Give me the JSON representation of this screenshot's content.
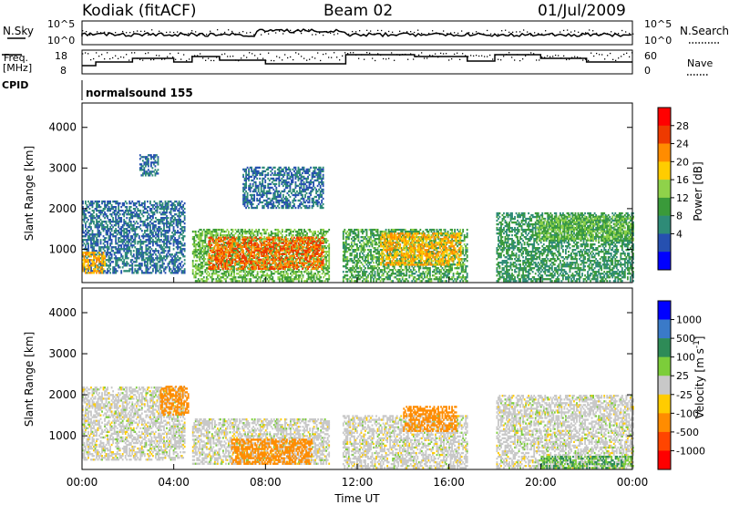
{
  "header": {
    "radar": "Kodiak (fitACF)",
    "beam": "Beam 02",
    "date": "01/Jul/2009"
  },
  "noise_panel": {
    "left_label": "N.Sky",
    "left_ticks": [
      "10^5",
      "10^0"
    ],
    "right_ticks": [
      "10^5",
      "10^0"
    ],
    "right_label": "N.Search"
  },
  "freq_panel": {
    "left_label_line1": "Freq.",
    "left_label_line2": "[MHz]",
    "left_ticks": [
      "18",
      "8"
    ],
    "right_ticks": [
      "60",
      "0"
    ],
    "right_label": "Nave"
  },
  "cpid_panel": {
    "label": "CPID",
    "program": "normalsound 155"
  },
  "x_axis": {
    "label": "Time UT",
    "ticks": [
      "00:00",
      "04:00",
      "08:00",
      "12:00",
      "16:00",
      "20:00",
      "00:00"
    ]
  },
  "chart_data": [
    {
      "type": "heatmap",
      "title": "",
      "xlabel": "Time UT",
      "ylabel": "Slant Range [km]",
      "xlim_hours": [
        0,
        24
      ],
      "ylim": [
        180,
        4600
      ],
      "yticks": [
        "1000",
        "2000",
        "3000",
        "4000"
      ],
      "colorbar": {
        "label": "Power [dB]",
        "ticks": [
          "28",
          "24",
          "20",
          "16",
          "12",
          "8",
          "4"
        ],
        "colors": [
          "#ff0000",
          "#ee3a00",
          "#ff8c00",
          "#ffcc00",
          "#8fd24a",
          "#3a9a3a",
          "#2e8b77",
          "#2650b0",
          "#0000ff"
        ]
      },
      "data_gaps_hours": [
        [
          10.9,
          11.3
        ],
        [
          16.8,
          17.4
        ],
        [
          17.6,
          18.0
        ]
      ],
      "echo_regions": [
        {
          "t_start": 0.0,
          "t_end": 4.5,
          "range_min": 400,
          "range_max": 2200,
          "level_db": 6
        },
        {
          "t_start": 0.0,
          "t_end": 1.0,
          "range_min": 400,
          "range_max": 900,
          "level_db": 22
        },
        {
          "t_start": 2.5,
          "t_end": 3.3,
          "range_min": 2800,
          "range_max": 3300,
          "level_db": 6
        },
        {
          "t_start": 4.8,
          "t_end": 10.8,
          "range_min": 200,
          "range_max": 1500,
          "level_db": 14
        },
        {
          "t_start": 5.5,
          "t_end": 10.5,
          "range_min": 500,
          "range_max": 1300,
          "level_db": 26
        },
        {
          "t_start": 7.0,
          "t_end": 10.5,
          "range_min": 2000,
          "range_max": 3000,
          "level_db": 6
        },
        {
          "t_start": 11.3,
          "t_end": 16.8,
          "range_min": 200,
          "range_max": 1500,
          "level_db": 12
        },
        {
          "t_start": 13.0,
          "t_end": 16.5,
          "range_min": 600,
          "range_max": 1400,
          "level_db": 22
        },
        {
          "t_start": 18.0,
          "t_end": 24.0,
          "range_min": 200,
          "range_max": 1900,
          "level_db": 10
        },
        {
          "t_start": 19.8,
          "t_end": 24.0,
          "range_min": 1200,
          "range_max": 1800,
          "level_db": 14
        }
      ]
    },
    {
      "type": "heatmap",
      "title": "",
      "xlabel": "Time UT",
      "ylabel": "Slant Range [km]",
      "xlim_hours": [
        0,
        24
      ],
      "ylim": [
        180,
        4600
      ],
      "yticks": [
        "1000",
        "2000",
        "3000",
        "4000"
      ],
      "colorbar": {
        "label": "Velocity [m s^-1]",
        "ticks": [
          "1000",
          "500",
          "100",
          "25",
          "-25",
          "-100",
          "-500",
          "-1000"
        ],
        "colors": [
          "#0000ff",
          "#3a7ac8",
          "#2e8b57",
          "#7ccd3a",
          "#c8c8c8",
          "#ffcc00",
          "#ff8c00",
          "#ff4500",
          "#ff0000"
        ]
      },
      "data_gaps_hours": [
        [
          10.9,
          11.3
        ],
        [
          16.8,
          17.4
        ],
        [
          17.6,
          18.0
        ]
      ],
      "echo_regions": [
        {
          "t_start": 0.0,
          "t_end": 4.5,
          "range_min": 400,
          "range_max": 2200,
          "velocity": 0
        },
        {
          "t_start": 3.4,
          "t_end": 4.6,
          "range_min": 1500,
          "range_max": 2200,
          "velocity": -200
        },
        {
          "t_start": 4.8,
          "t_end": 10.8,
          "range_min": 300,
          "range_max": 1400,
          "velocity": 0
        },
        {
          "t_start": 6.5,
          "t_end": 10.0,
          "range_min": 300,
          "range_max": 900,
          "velocity": -150
        },
        {
          "t_start": 11.3,
          "t_end": 16.8,
          "range_min": 200,
          "range_max": 1500,
          "velocity": 0
        },
        {
          "t_start": 14.0,
          "t_end": 16.3,
          "range_min": 1100,
          "range_max": 1700,
          "velocity": -120
        },
        {
          "t_start": 18.0,
          "t_end": 24.0,
          "range_min": 200,
          "range_max": 2000,
          "velocity": 0
        },
        {
          "t_start": 20.0,
          "t_end": 24.0,
          "range_min": 200,
          "range_max": 500,
          "velocity": 60
        }
      ]
    }
  ]
}
